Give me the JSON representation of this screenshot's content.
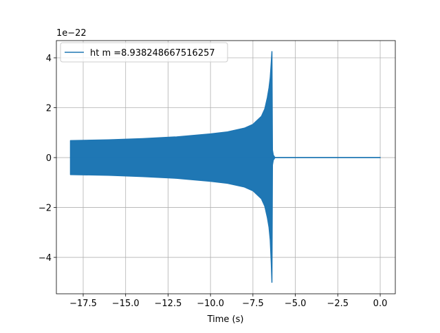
{
  "chart_data": {
    "type": "envelope",
    "xlabel": "Time (s)",
    "offset_text": "1e−22",
    "xlim": [
      -19.08,
      0.89
    ],
    "ylim": [
      -5.46,
      4.69
    ],
    "xticks": [
      {
        "value": -17.5,
        "label": "−17.5"
      },
      {
        "value": -15,
        "label": "−15.0"
      },
      {
        "value": -12.5,
        "label": "−12.5"
      },
      {
        "value": -10,
        "label": "−10.0"
      },
      {
        "value": -7.5,
        "label": "−7.5"
      },
      {
        "value": -5,
        "label": "−5.0"
      },
      {
        "value": -2.5,
        "label": "−2.5"
      },
      {
        "value": 0,
        "label": "0.0"
      }
    ],
    "yticks": [
      {
        "value": -4,
        "label": "−4"
      },
      {
        "value": -2,
        "label": "−2"
      },
      0,
      2,
      4
    ],
    "grid": true,
    "legend": "upper left",
    "series": [
      {
        "name": "ht m =8.938248667516257",
        "color": "#1f77b4",
        "x": [
          -18.25,
          -16,
          -14,
          -12,
          -10,
          -9,
          -8,
          -7.5,
          -7,
          -6.8,
          -6.65,
          -6.55,
          -6.48,
          -6.42,
          -6.38,
          -6.35,
          -6.3,
          -6.2,
          0.0
        ],
        "upper": [
          0.68,
          0.71,
          0.76,
          0.83,
          0.95,
          1.03,
          1.18,
          1.33,
          1.65,
          1.95,
          2.4,
          2.8,
          3.2,
          3.8,
          4.25,
          0.3,
          0.1,
          0,
          0
        ],
        "lower": [
          -0.68,
          -0.71,
          -0.76,
          -0.83,
          -0.95,
          -1.03,
          -1.18,
          -1.33,
          -1.65,
          -1.95,
          -2.4,
          -2.8,
          -3.3,
          -4.2,
          -5.0,
          -0.3,
          -0.1,
          0,
          0
        ]
      }
    ]
  }
}
